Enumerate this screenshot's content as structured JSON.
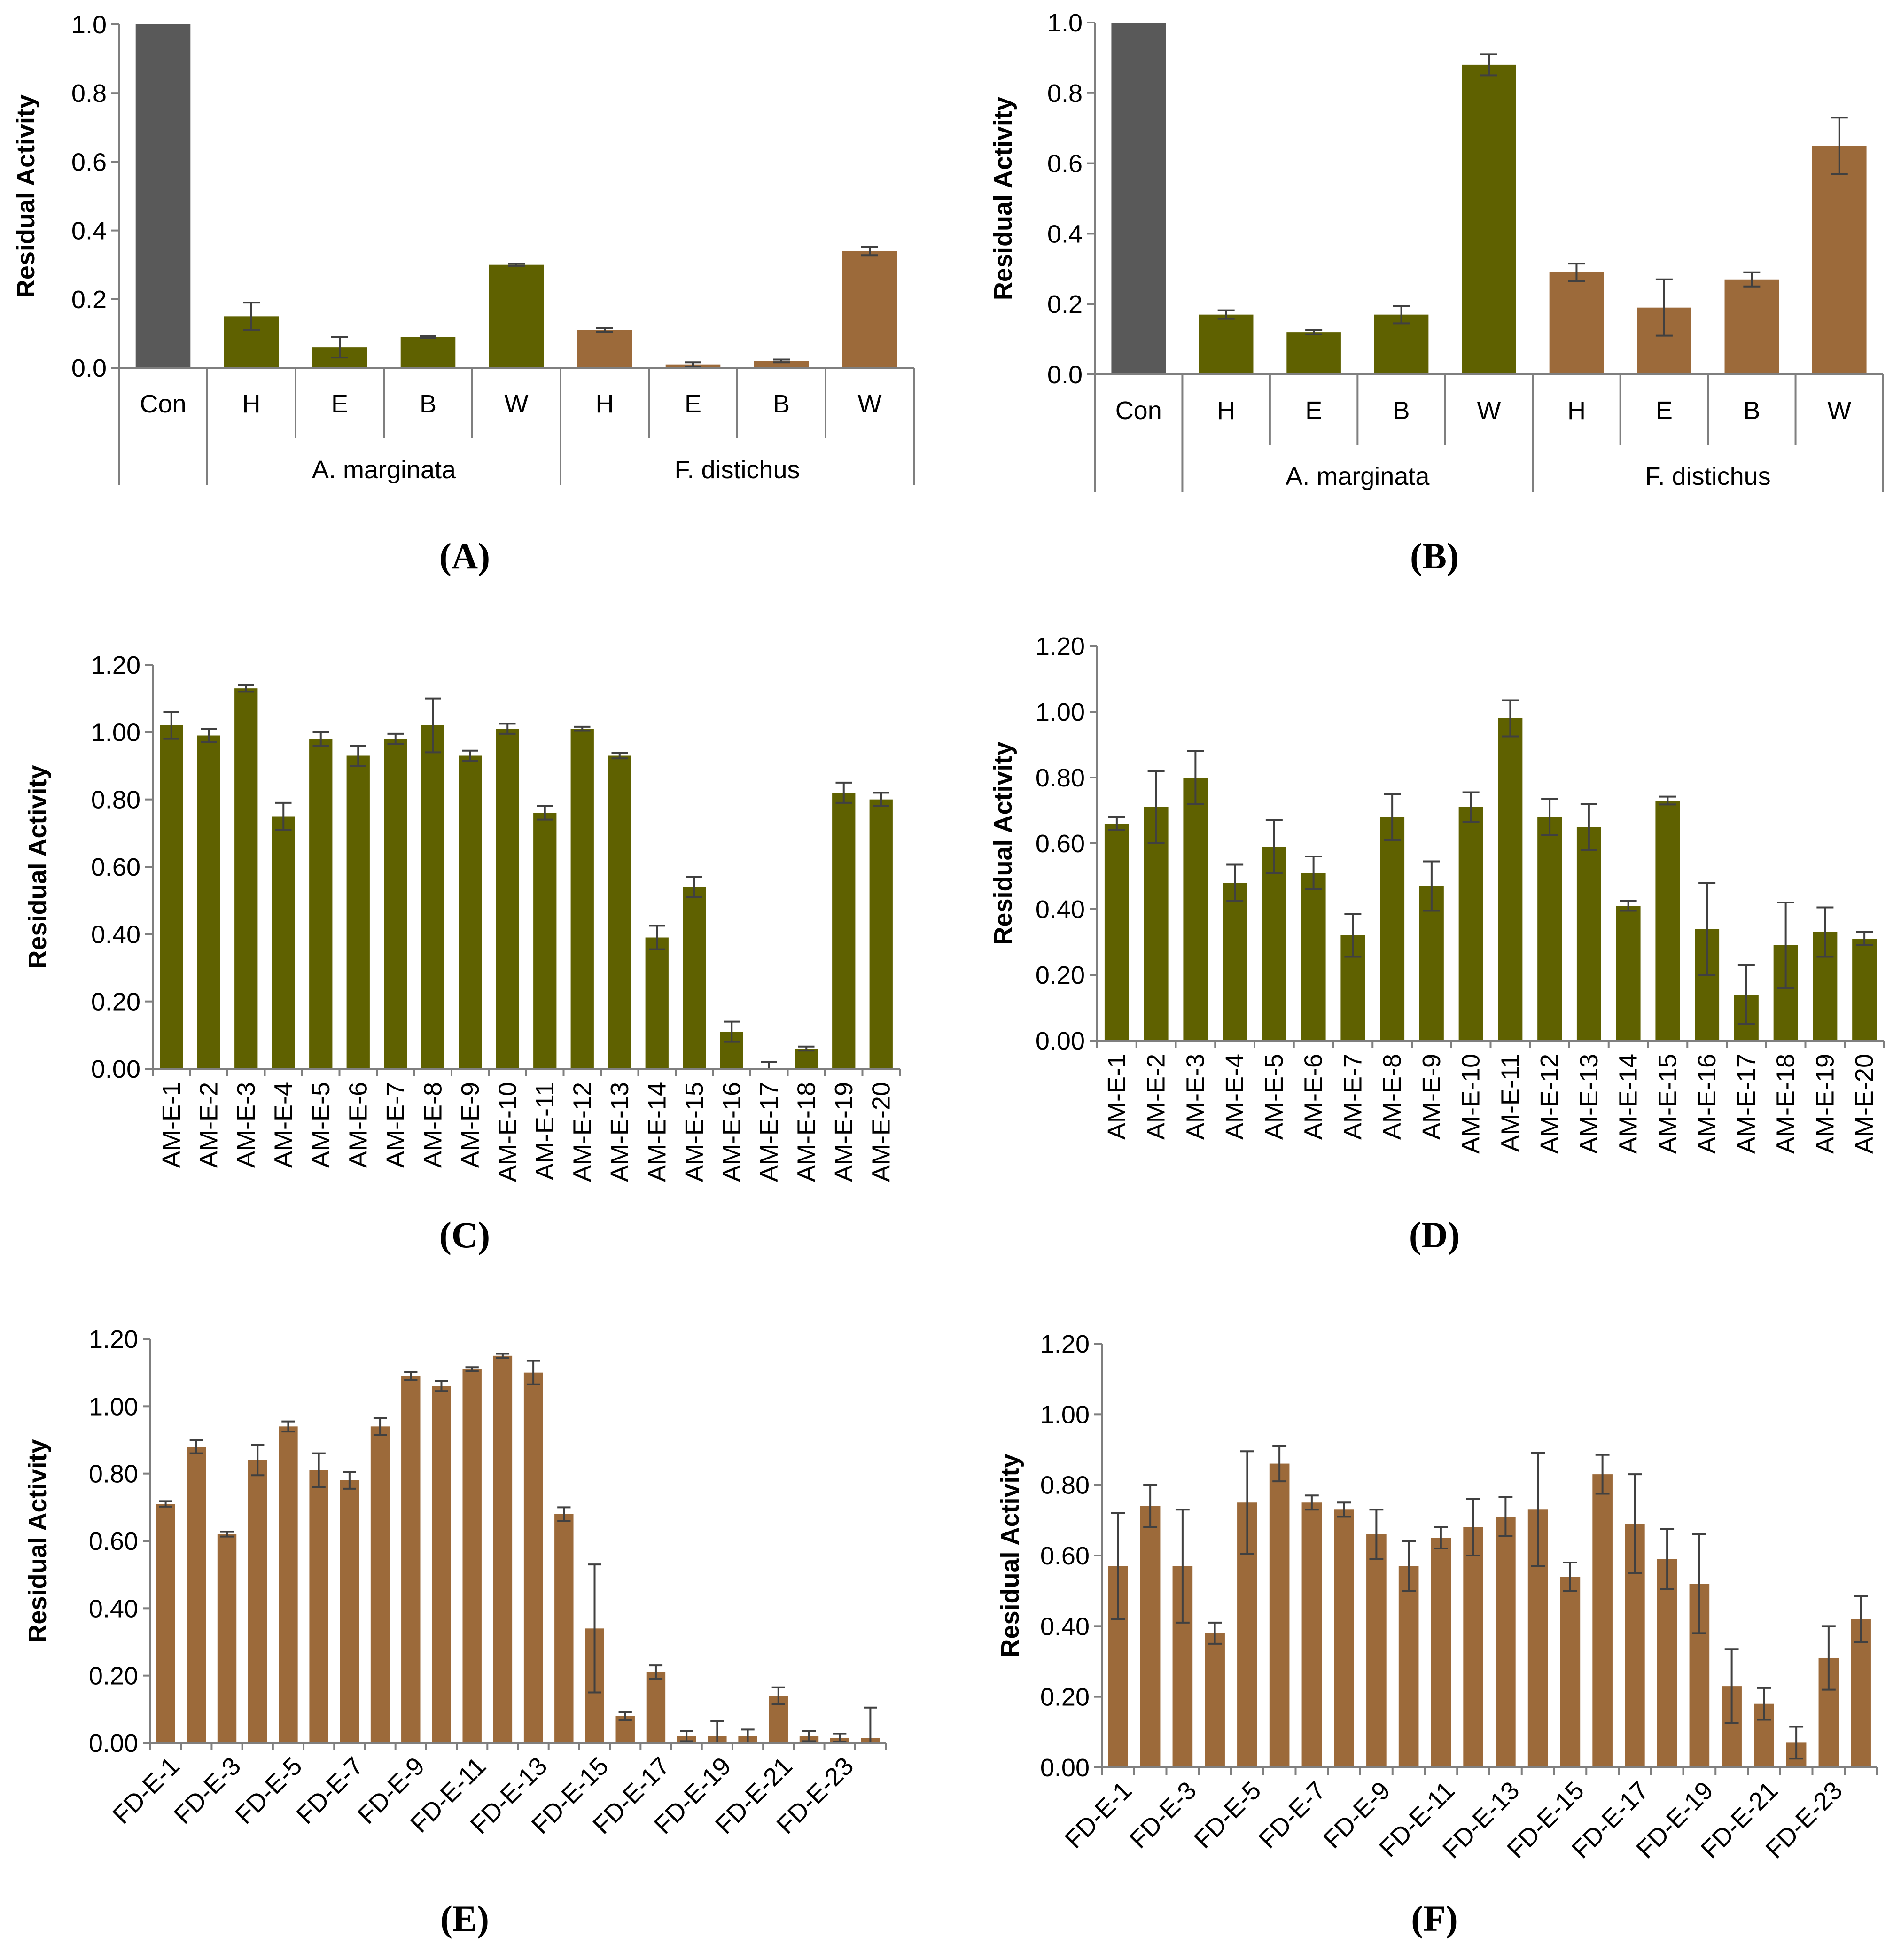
{
  "colors": {
    "control": "#595959",
    "am": "#5f6100",
    "fd": "#9c6a3a"
  },
  "chart_data": [
    {
      "panel": "(A)",
      "type": "bar",
      "ylabel": "Residual Activity",
      "yticks": [
        "0.0",
        "0.2",
        "0.4",
        "0.6",
        "0.8",
        "1.0"
      ],
      "ylim": [
        0,
        1
      ],
      "categories": [
        "Con",
        "H",
        "E",
        "B",
        "W",
        "H",
        "E",
        "B",
        "W"
      ],
      "groups": [
        {
          "label": "",
          "start": 0,
          "end": 0
        },
        {
          "label": "A. marginata",
          "start": 1,
          "end": 4
        },
        {
          "label": "F. distichus",
          "start": 5,
          "end": 8
        }
      ],
      "values": [
        1.0,
        0.15,
        0.06,
        0.09,
        0.3,
        0.11,
        0.01,
        0.02,
        0.34
      ],
      "errors": [
        0.0,
        0.04,
        0.03,
        0.003,
        0.003,
        0.006,
        0.006,
        0.004,
        0.012
      ],
      "bar_colors": [
        "control",
        "am",
        "am",
        "am",
        "am",
        "fd",
        "fd",
        "fd",
        "fd"
      ]
    },
    {
      "panel": "(B)",
      "type": "bar",
      "ylabel": "Residual Activity",
      "yticks": [
        "0.0",
        "0.2",
        "0.4",
        "0.6",
        "0.8",
        "1.0"
      ],
      "ylim": [
        0,
        1
      ],
      "categories": [
        "Con",
        "H",
        "E",
        "B",
        "W",
        "H",
        "E",
        "B",
        "W"
      ],
      "groups": [
        {
          "label": "",
          "start": 0,
          "end": 0
        },
        {
          "label": "A. marginata",
          "start": 1,
          "end": 4
        },
        {
          "label": "F. distichus",
          "start": 5,
          "end": 8
        }
      ],
      "values": [
        1.0,
        0.17,
        0.12,
        0.17,
        0.88,
        0.29,
        0.19,
        0.27,
        0.65
      ],
      "errors": [
        0.0,
        0.012,
        0.006,
        0.025,
        0.03,
        0.025,
        0.08,
        0.02,
        0.08
      ],
      "bar_colors": [
        "control",
        "am",
        "am",
        "am",
        "am",
        "fd",
        "fd",
        "fd",
        "fd"
      ]
    },
    {
      "panel": "(C)",
      "type": "bar",
      "ylabel": "Residual Activity",
      "yticks": [
        "0.00",
        "0.20",
        "0.40",
        "0.60",
        "0.80",
        "1.00",
        "1.20"
      ],
      "ylim": [
        0,
        1.2
      ],
      "categories": [
        "AM-E-1",
        "AM-E-2",
        "AM-E-3",
        "AM-E-4",
        "AM-E-5",
        "AM-E-6",
        "AM-E-7",
        "AM-E-8",
        "AM-E-9",
        "AM-E-10",
        "AM-E-11",
        "AM-E-12",
        "AM-E-13",
        "AM-E-14",
        "AM-E-15",
        "AM-E-16",
        "AM-E-17",
        "AM-E-18",
        "AM-E-19",
        "AM-E-20"
      ],
      "values": [
        1.02,
        0.99,
        1.13,
        0.75,
        0.98,
        0.93,
        0.98,
        1.02,
        0.93,
        1.01,
        0.76,
        1.01,
        0.93,
        0.39,
        0.54,
        0.11,
        0.0,
        0.06,
        0.82,
        0.8
      ],
      "errors": [
        0.04,
        0.02,
        0.01,
        0.04,
        0.02,
        0.03,
        0.015,
        0.08,
        0.015,
        0.015,
        0.02,
        0.006,
        0.008,
        0.035,
        0.03,
        0.03,
        0.02,
        0.006,
        0.03,
        0.02
      ],
      "bar_color": "am"
    },
    {
      "panel": "(D)",
      "type": "bar",
      "ylabel": "Residual Activity",
      "yticks": [
        "0.00",
        "0.20",
        "0.40",
        "0.60",
        "0.80",
        "1.00",
        "1.20"
      ],
      "ylim": [
        0,
        1.2
      ],
      "categories": [
        "AM-E-1",
        "AM-E-2",
        "AM-E-3",
        "AM-E-4",
        "AM-E-5",
        "AM-E-6",
        "AM-E-7",
        "AM-E-8",
        "AM-E-9",
        "AM-E-10",
        "AM-E-11",
        "AM-E-12",
        "AM-E-13",
        "AM-E-14",
        "AM-E-15",
        "AM-E-16",
        "AM-E-17",
        "AM-E-18",
        "AM-E-19",
        "AM-E-20"
      ],
      "values": [
        0.66,
        0.71,
        0.8,
        0.48,
        0.59,
        0.51,
        0.32,
        0.68,
        0.47,
        0.71,
        0.98,
        0.68,
        0.65,
        0.41,
        0.73,
        0.34,
        0.14,
        0.29,
        0.33,
        0.31
      ],
      "errors": [
        0.02,
        0.11,
        0.08,
        0.055,
        0.08,
        0.05,
        0.065,
        0.07,
        0.075,
        0.045,
        0.055,
        0.055,
        0.07,
        0.015,
        0.012,
        0.14,
        0.09,
        0.13,
        0.075,
        0.02
      ],
      "bar_color": "am"
    },
    {
      "panel": "(E)",
      "type": "bar",
      "ylabel": "Residual Activity",
      "yticks": [
        "0.00",
        "0.20",
        "0.40",
        "0.60",
        "0.80",
        "1.00",
        "1.20"
      ],
      "ylim": [
        0,
        1.2
      ],
      "categories": [
        "FD-E-1",
        "FD-E-2",
        "FD-E-3",
        "FD-E-4",
        "FD-E-5",
        "FD-E-6",
        "FD-E-7",
        "FD-E-8",
        "FD-E-9",
        "FD-E-10",
        "FD-E-11",
        "FD-E-12",
        "FD-E-13",
        "FD-E-14",
        "FD-E-15",
        "FD-E-16",
        "FD-E-17",
        "FD-E-18",
        "FD-E-19",
        "FD-E-20",
        "FD-E-21",
        "FD-E-22",
        "FD-E-23",
        "FD-E-24"
      ],
      "tick_labels": [
        "FD-E-1",
        "",
        "FD-E-3",
        "",
        "FD-E-5",
        "",
        "FD-E-7",
        "",
        "FD-E-9",
        "",
        "FD-E-11",
        "",
        "FD-E-13",
        "",
        "FD-E-15",
        "",
        "FD-E-17",
        "",
        "FD-E-19",
        "",
        "FD-E-21",
        "",
        "FD-E-23",
        ""
      ],
      "values": [
        0.71,
        0.88,
        0.62,
        0.84,
        0.94,
        0.81,
        0.78,
        0.94,
        1.09,
        1.06,
        1.11,
        1.15,
        1.1,
        0.68,
        0.34,
        0.08,
        0.21,
        0.02,
        0.02,
        0.02,
        0.14,
        0.02,
        0.015,
        0.015
      ],
      "errors": [
        0.008,
        0.02,
        0.007,
        0.045,
        0.015,
        0.05,
        0.025,
        0.025,
        0.012,
        0.015,
        0.006,
        0.006,
        0.035,
        0.02,
        0.19,
        0.012,
        0.02,
        0.015,
        0.045,
        0.02,
        0.025,
        0.015,
        0.012,
        0.09
      ],
      "bar_color": "fd"
    },
    {
      "panel": "(F)",
      "type": "bar",
      "ylabel": "Residual Activity",
      "yticks": [
        "0.00",
        "0.20",
        "0.40",
        "0.60",
        "0.80",
        "1.00",
        "1.20"
      ],
      "ylim": [
        0,
        1.2
      ],
      "categories": [
        "FD-E-1",
        "FD-E-2",
        "FD-E-3",
        "FD-E-4",
        "FD-E-5",
        "FD-E-6",
        "FD-E-7",
        "FD-E-8",
        "FD-E-9",
        "FD-E-10",
        "FD-E-11",
        "FD-E-12",
        "FD-E-13",
        "FD-E-14",
        "FD-E-15",
        "FD-E-16",
        "FD-E-17",
        "FD-E-18",
        "FD-E-19",
        "FD-E-20",
        "FD-E-21",
        "FD-E-22",
        "FD-E-23",
        "FD-E-24"
      ],
      "tick_labels": [
        "FD-E-1",
        "",
        "FD-E-3",
        "",
        "FD-E-5",
        "",
        "FD-E-7",
        "",
        "FD-E-9",
        "",
        "FD-E-11",
        "",
        "FD-E-13",
        "",
        "FD-E-15",
        "",
        "FD-E-17",
        "",
        "FD-E-19",
        "",
        "FD-E-21",
        "",
        "FD-E-23",
        ""
      ],
      "values": [
        0.57,
        0.74,
        0.57,
        0.38,
        0.75,
        0.86,
        0.75,
        0.73,
        0.66,
        0.57,
        0.65,
        0.68,
        0.71,
        0.73,
        0.54,
        0.83,
        0.69,
        0.59,
        0.52,
        0.23,
        0.18,
        0.07,
        0.31,
        0.42
      ],
      "errors": [
        0.15,
        0.06,
        0.16,
        0.03,
        0.145,
        0.05,
        0.02,
        0.02,
        0.07,
        0.07,
        0.03,
        0.08,
        0.055,
        0.16,
        0.04,
        0.055,
        0.14,
        0.085,
        0.14,
        0.105,
        0.045,
        0.045,
        0.09,
        0.065
      ],
      "bar_color": "fd"
    }
  ]
}
